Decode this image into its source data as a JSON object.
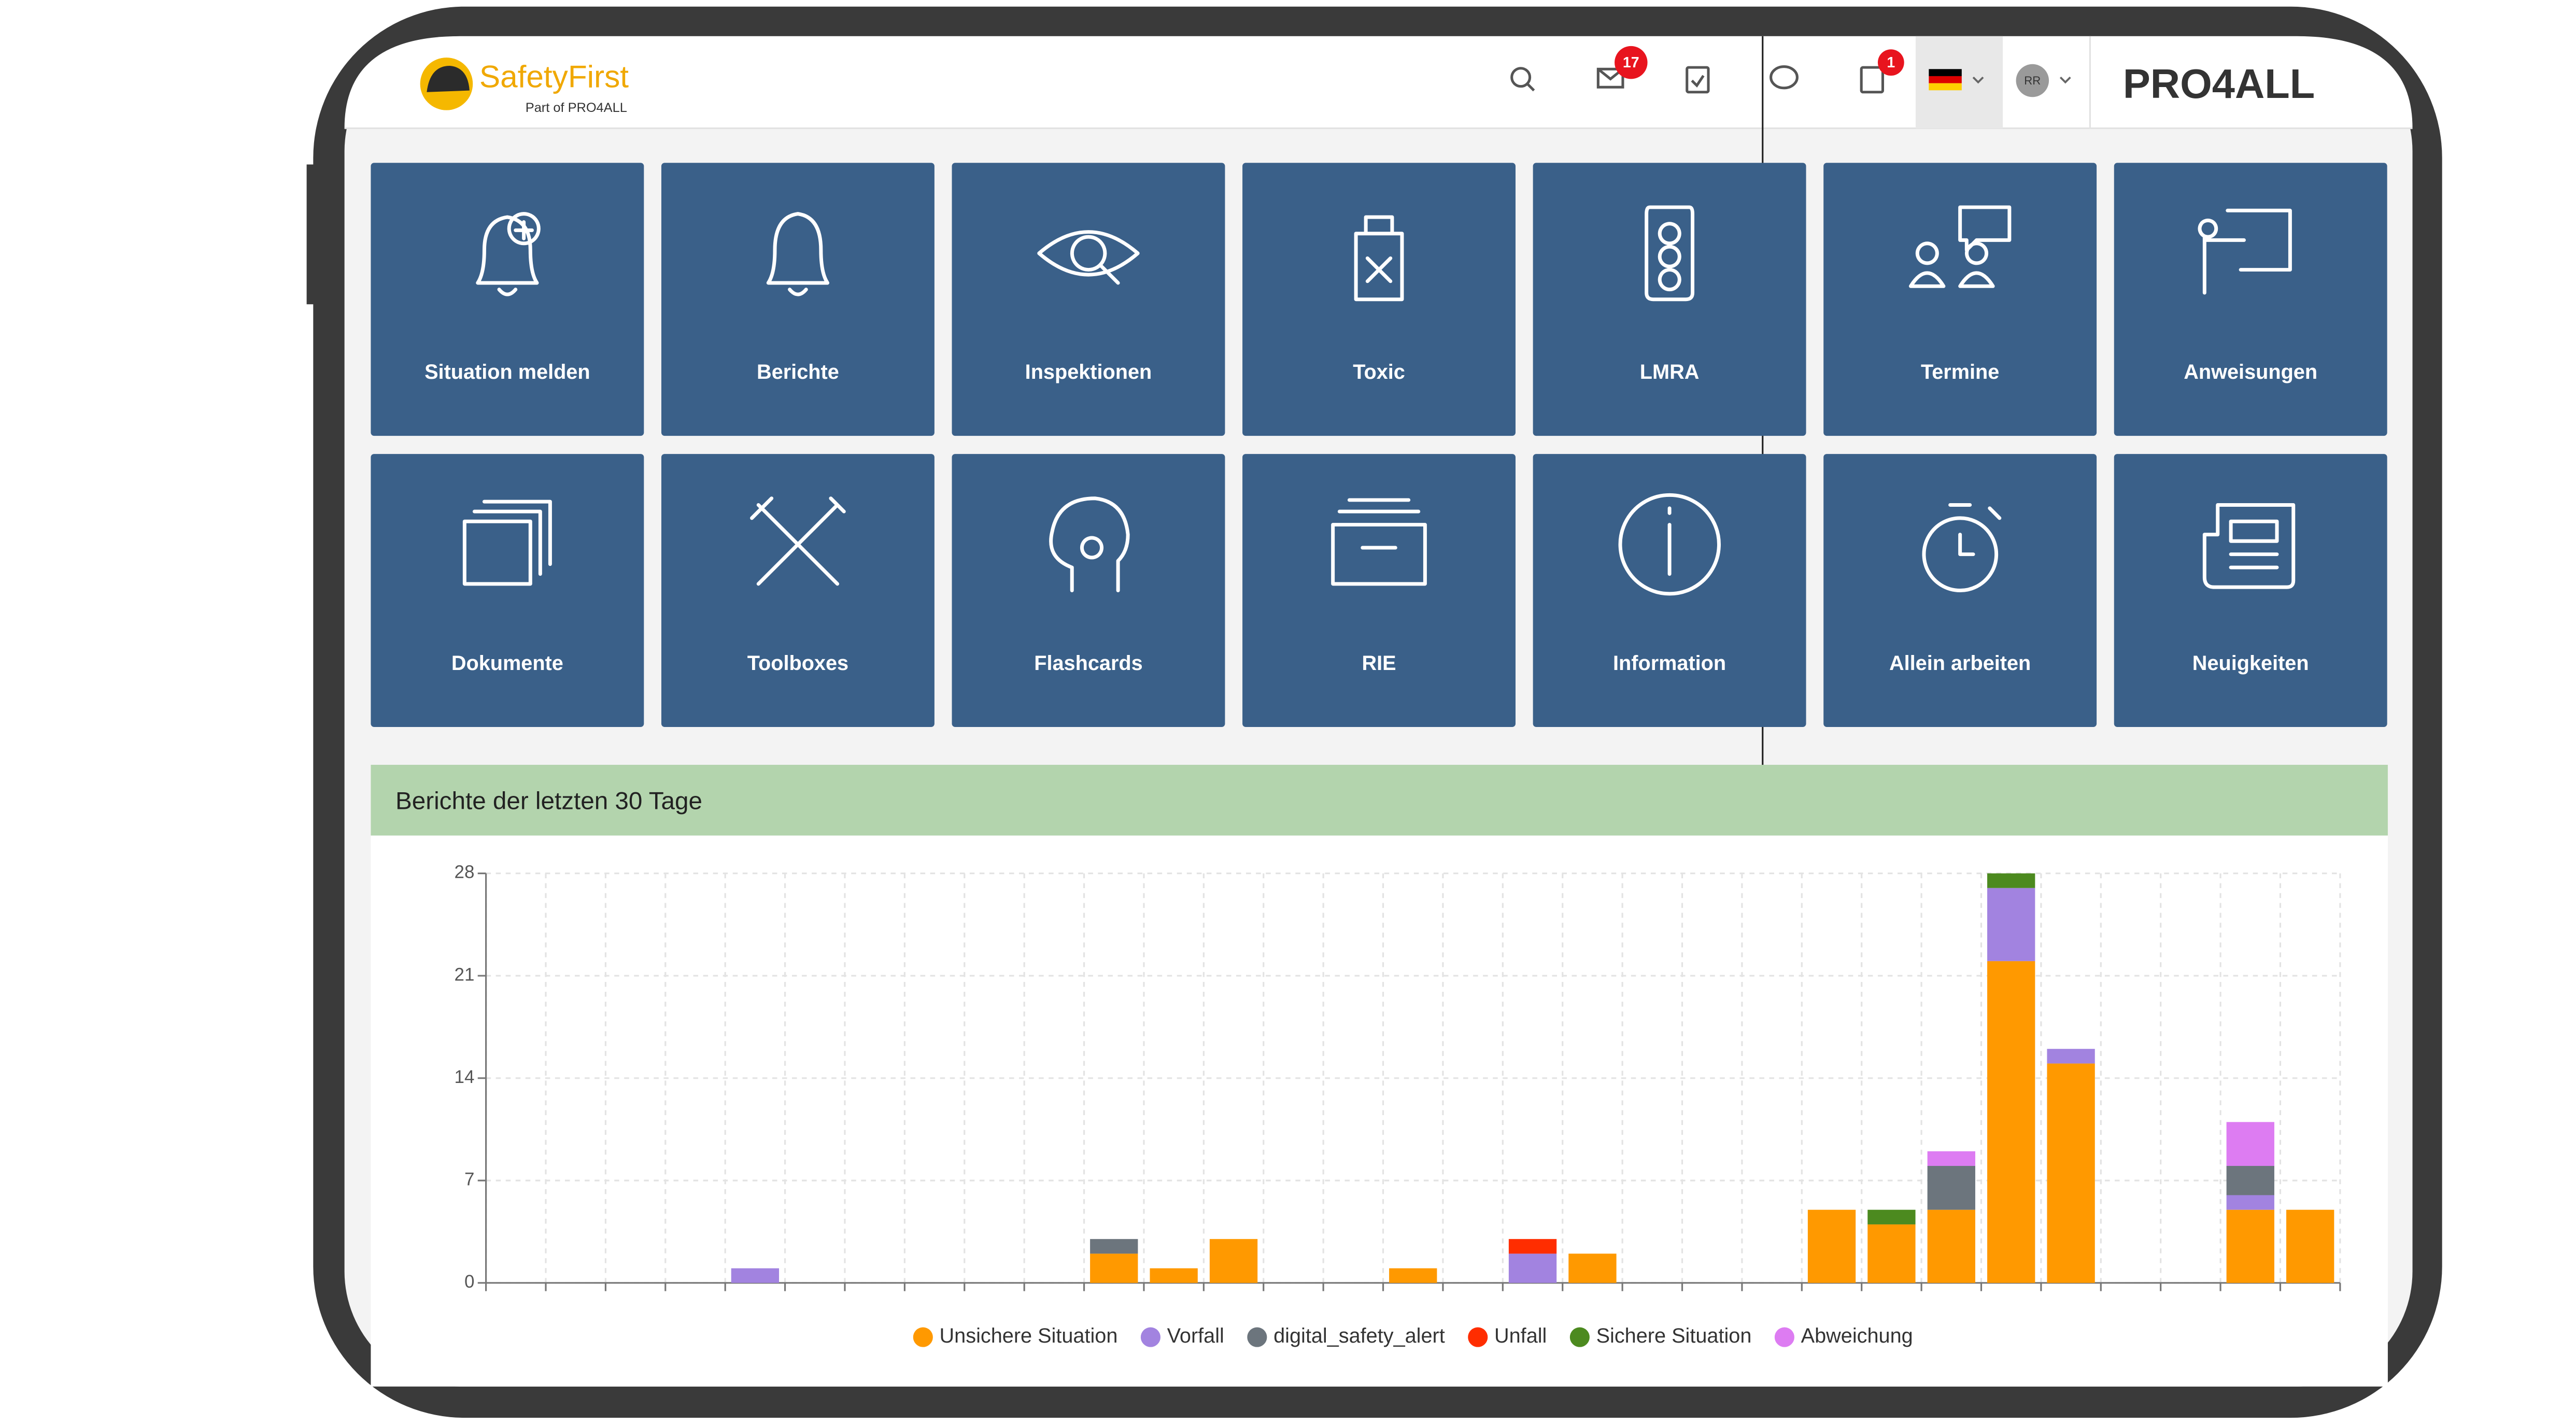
{
  "header": {
    "logo_title": "SafetyFirst",
    "logo_subtitle": "Part of PRO4ALL",
    "mail_badge": 17,
    "clipboard_badge": 1,
    "avatar": "RR",
    "brand": "PRO4ALL"
  },
  "tiles": [
    "Situation melden",
    "Berichte",
    "Inspektionen",
    "Toxic",
    "LMRA",
    "Termine",
    "Anweisungen",
    "Dokumente",
    "Toolboxes",
    "Flashcards",
    "RIE",
    "Information",
    "Allein arbeiten",
    "Neuigkeiten"
  ],
  "panel": {
    "title": "Berichte der letzten 30 Tage"
  },
  "chart_data": {
    "type": "bar",
    "stacked": true,
    "categories": [
      null,
      null,
      null,
      null,
      null,
      null,
      null,
      null,
      null,
      null,
      null,
      null,
      null,
      null,
      null,
      null,
      null,
      null,
      null,
      null,
      null,
      null,
      null,
      null,
      null,
      null,
      null,
      null,
      null,
      null,
      null
    ],
    "series": [
      {
        "name": "Unsichere Situation",
        "color": "#ff9900",
        "values": [
          0,
          0,
          0,
          0,
          0,
          0,
          0,
          0,
          0,
          0,
          2,
          1,
          3,
          0,
          0,
          1,
          0,
          0,
          2,
          0,
          0,
          0,
          5,
          4,
          5,
          22,
          15,
          0,
          0,
          5,
          5
        ]
      },
      {
        "name": "Vorfall",
        "color": "#a283e0",
        "values": [
          0,
          0,
          0,
          0,
          1,
          0,
          0,
          0,
          0,
          0,
          0,
          0,
          0,
          0,
          0,
          0,
          0,
          2,
          0,
          0,
          0,
          0,
          0,
          0,
          0,
          5,
          1,
          0,
          0,
          1,
          0
        ]
      },
      {
        "name": "digital_safety_alert",
        "color": "#6c757d",
        "values": [
          0,
          0,
          0,
          0,
          0,
          0,
          0,
          0,
          0,
          0,
          1,
          0,
          0,
          0,
          0,
          0,
          0,
          0,
          0,
          0,
          0,
          0,
          0,
          0,
          3,
          0,
          0,
          0,
          0,
          2,
          0
        ]
      },
      {
        "name": "Unfall",
        "color": "#ff2d00",
        "values": [
          0,
          0,
          0,
          0,
          0,
          0,
          0,
          0,
          0,
          0,
          0,
          0,
          0,
          0,
          0,
          0,
          0,
          1,
          0,
          0,
          0,
          0,
          0,
          0,
          0,
          0,
          0,
          0,
          0,
          0,
          0
        ]
      },
      {
        "name": "Sichere Situation",
        "color": "#4c8a1f",
        "values": [
          0,
          0,
          0,
          0,
          0,
          0,
          0,
          0,
          0,
          0,
          0,
          0,
          0,
          0,
          0,
          0,
          0,
          0,
          0,
          0,
          0,
          0,
          0,
          1,
          0,
          1,
          0,
          0,
          0,
          0,
          0
        ]
      },
      {
        "name": "Abweichung",
        "color": "#dd7cf2",
        "values": [
          0,
          0,
          0,
          0,
          0,
          0,
          0,
          0,
          0,
          0,
          0,
          0,
          0,
          0,
          0,
          0,
          0,
          0,
          0,
          0,
          0,
          0,
          0,
          0,
          1,
          0,
          0,
          0,
          0,
          3,
          0
        ]
      }
    ],
    "ylim": [
      0,
      28
    ],
    "yticks": [
      0,
      7,
      14,
      21,
      28
    ],
    "grid": true,
    "legend": "bottom"
  }
}
